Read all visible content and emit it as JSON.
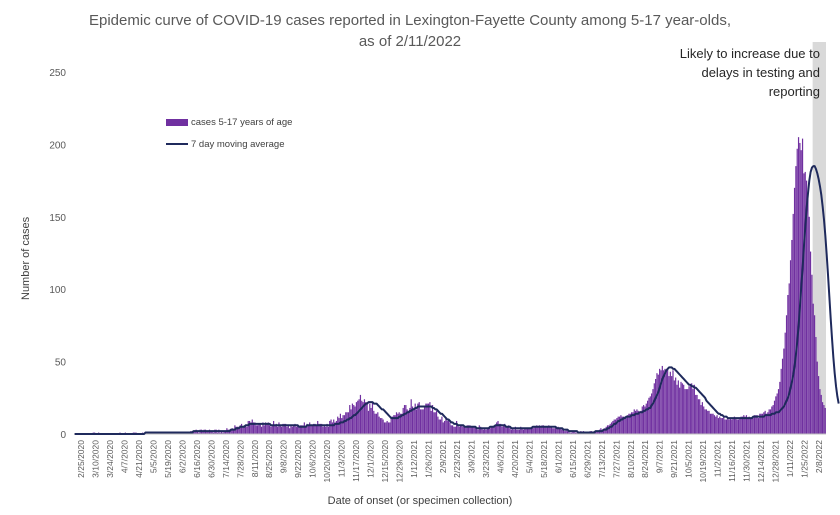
{
  "chart_data": {
    "type": "bar",
    "title": "Epidemic curve of COVID-19 cases reported in Lexington-Fayette County among 5-17 year-olds, as of 2/11/2022",
    "xlabel": "Date of onset (or specimen collection)",
    "ylabel": "Number of cases",
    "ylim": [
      0,
      250
    ],
    "yticks": [
      0,
      50,
      100,
      150,
      200,
      250
    ],
    "grid": false,
    "legend_position": "top-left",
    "annotation": "Likely to increase due to delays in testing and reporting",
    "x_range": [
      "2/25/2020",
      "2/11/2022"
    ],
    "tick_labels": [
      "2/25/2020",
      "3/10/2020",
      "3/24/2020",
      "4/7/2020",
      "4/21/2020",
      "5/5/2020",
      "5/19/2020",
      "6/2/2020",
      "6/16/2020",
      "6/30/2020",
      "7/14/2020",
      "7/28/2020",
      "8/11/2020",
      "8/25/2020",
      "9/8/2020",
      "9/22/2020",
      "10/6/2020",
      "10/20/2020",
      "11/3/2020",
      "11/17/2020",
      "12/1/2020",
      "12/15/2020",
      "12/29/2020",
      "1/12/2021",
      "1/26/2021",
      "2/9/2021",
      "2/23/2021",
      "3/9/2021",
      "3/23/2021",
      "4/6/2021",
      "4/20/2021",
      "5/4/2021",
      "5/18/2021",
      "6/1/2021",
      "6/15/2021",
      "6/29/2021",
      "7/13/2021",
      "7/27/2021",
      "8/10/2021",
      "8/24/2021",
      "9/7/2021",
      "9/21/2021",
      "10/5/2021",
      "10/19/2021",
      "11/2/2021",
      "11/16/2021",
      "11/30/2021",
      "12/14/2021",
      "12/28/2021",
      "1/11/2022",
      "1/25/2022",
      "2/8/2022"
    ],
    "series": [
      {
        "name": "cases 5-17 years of age",
        "kind": "bar",
        "color": "#7030a0",
        "values": [
          0,
          0,
          0,
          0,
          0,
          0,
          0,
          0,
          0,
          0,
          0,
          0,
          0,
          0,
          1,
          1,
          0,
          0,
          1,
          0,
          0,
          0,
          0,
          0,
          0,
          0,
          0,
          0,
          0,
          0,
          0,
          0,
          0,
          0,
          1,
          0,
          0,
          0,
          1,
          0,
          0,
          0,
          0,
          0,
          1,
          1,
          1,
          0,
          0,
          0,
          0,
          1,
          0,
          1,
          1,
          0,
          0,
          0,
          1,
          1,
          0,
          1,
          0,
          0,
          0,
          0,
          1,
          0,
          0,
          0,
          0,
          0,
          1,
          0,
          0,
          1,
          1,
          0,
          0,
          1,
          0,
          1,
          0,
          1,
          1,
          1,
          1,
          2,
          2,
          2,
          2,
          3,
          2,
          1,
          3,
          3,
          2,
          3,
          3,
          2,
          2,
          3,
          2,
          2,
          1,
          3,
          3,
          1,
          3,
          1,
          2,
          1,
          2,
          2,
          4,
          3,
          3,
          3,
          4,
          3,
          6,
          5,
          5,
          5,
          6,
          7,
          5,
          6,
          6,
          5,
          9,
          9,
          8,
          10,
          8,
          8,
          6,
          6,
          7,
          7,
          5,
          8,
          6,
          8,
          7,
          8,
          6,
          5,
          6,
          9,
          6,
          7,
          5,
          8,
          6,
          5,
          7,
          7,
          7,
          5,
          6,
          4,
          6,
          5,
          6,
          7,
          5,
          6,
          5,
          6,
          6,
          6,
          8,
          5,
          7,
          6,
          8,
          6,
          6,
          7,
          7,
          6,
          9,
          7,
          7,
          7,
          5,
          6,
          5,
          7,
          5,
          9,
          10,
          8,
          10,
          8,
          9,
          12,
          11,
          14,
          11,
          13,
          13,
          15,
          15,
          15,
          20,
          17,
          21,
          20,
          19,
          22,
          23,
          24,
          27,
          23,
          22,
          24,
          22,
          22,
          16,
          21,
          18,
          22,
          16,
          14,
          14,
          15,
          12,
          11,
          11,
          10,
          8,
          8,
          9,
          8,
          8,
          12,
          12,
          13,
          13,
          15,
          14,
          15,
          14,
          14,
          18,
          20,
          20,
          17,
          16,
          18,
          24,
          19,
          18,
          21,
          17,
          21,
          22,
          17,
          17,
          17,
          19,
          21,
          21,
          21,
          22,
          16,
          20,
          15,
          15,
          16,
          12,
          10,
          10,
          12,
          8,
          9,
          11,
          9,
          10,
          8,
          6,
          6,
          5,
          5,
          9,
          6,
          5,
          6,
          6,
          5,
          5,
          5,
          6,
          6,
          6,
          5,
          5,
          5,
          5,
          4,
          3,
          6,
          5,
          4,
          3,
          4,
          3,
          4,
          4,
          4,
          5,
          5,
          6,
          6,
          8,
          9,
          7,
          7,
          5,
          6,
          7,
          5,
          5,
          6,
          4,
          3,
          4,
          3,
          5,
          3,
          3,
          3,
          5,
          4,
          3,
          4,
          4,
          4,
          4,
          4,
          5,
          4,
          5,
          5,
          6,
          5,
          6,
          5,
          6,
          6,
          5,
          5,
          5,
          6,
          5,
          5,
          4,
          4,
          5,
          4,
          5,
          4,
          4,
          3,
          3,
          2,
          3,
          2,
          2,
          1,
          1,
          2,
          2,
          1,
          1,
          1,
          1,
          2,
          1,
          2,
          1,
          1,
          1,
          1,
          2,
          2,
          1,
          2,
          2,
          2,
          2,
          3,
          4,
          3,
          3,
          4,
          5,
          6,
          6,
          7,
          8,
          9,
          10,
          10,
          11,
          12,
          12,
          13,
          12,
          12,
          12,
          12,
          13,
          14,
          14,
          15,
          15,
          17,
          16,
          17,
          16,
          14,
          16,
          19,
          20,
          19,
          21,
          23,
          25,
          26,
          28,
          31,
          35,
          38,
          42,
          41,
          45,
          44,
          47,
          44,
          45,
          44,
          45,
          40,
          43,
          40,
          44,
          37,
          39,
          34,
          37,
          32,
          36,
          35,
          34,
          31,
          31,
          31,
          33,
          33,
          35,
          31,
          34,
          27,
          27,
          24,
          24,
          20,
          22,
          19,
          17,
          17,
          16,
          16,
          14,
          14,
          14,
          13,
          12,
          13,
          11,
          12,
          11,
          11,
          12,
          10,
          10,
          11,
          10,
          11,
          10,
          11,
          12,
          11,
          10,
          10,
          11,
          12,
          12,
          13,
          12,
          13,
          11,
          12,
          11,
          11,
          12,
          13,
          13,
          13,
          11,
          14,
          14,
          14,
          15,
          16,
          14,
          15,
          17,
          17,
          19,
          20,
          23,
          26,
          28,
          31,
          36,
          45,
          52,
          59,
          70,
          82,
          96,
          104,
          120,
          134,
          152,
          170,
          185,
          197,
          205,
          201,
          196,
          204,
          180,
          181,
          175,
          165,
          150,
          126,
          110,
          90,
          82,
          67,
          50,
          40,
          31,
          27,
          22,
          20,
          18
        ]
      },
      {
        "name": "7 day moving average",
        "kind": "line",
        "color": "#1f2a5c",
        "values": [
          0,
          0,
          0,
          0,
          0,
          0,
          0,
          0,
          0,
          0,
          0,
          0,
          0,
          0,
          0,
          0,
          0,
          0,
          0,
          0,
          0,
          0,
          0,
          0,
          0,
          0,
          0,
          0,
          0,
          0,
          0,
          0,
          0,
          0,
          0,
          0,
          0,
          0,
          0,
          0,
          0,
          0,
          0,
          0,
          0,
          0,
          0,
          0,
          0,
          0,
          0,
          0,
          0,
          1,
          1,
          1,
          1,
          1,
          1,
          1,
          1,
          1,
          1,
          1,
          1,
          1,
          1,
          1,
          1,
          1,
          1,
          1,
          1,
          1,
          1,
          1,
          1,
          1,
          1,
          1,
          1,
          1,
          1,
          1,
          1,
          1,
          1,
          1,
          1,
          2,
          2,
          2,
          2,
          2,
          2,
          2,
          2,
          2,
          2,
          2,
          2,
          2,
          2,
          2,
          2,
          2,
          2,
          2,
          2,
          2,
          2,
          2,
          2,
          2,
          2,
          2,
          2,
          3,
          3,
          3,
          3,
          4,
          4,
          4,
          5,
          5,
          5,
          5,
          6,
          6,
          6,
          7,
          7,
          7,
          7,
          7,
          7,
          7,
          7,
          7,
          7,
          7,
          7,
          7,
          7,
          7,
          7,
          6,
          6,
          6,
          6,
          6,
          6,
          6,
          6,
          6,
          6,
          6,
          6,
          6,
          6,
          6,
          6,
          6,
          6,
          6,
          6,
          6,
          5,
          5,
          5,
          5,
          5,
          5,
          6,
          6,
          6,
          6,
          6,
          6,
          6,
          6,
          6,
          6,
          6,
          6,
          6,
          6,
          6,
          6,
          6,
          6,
          6,
          6,
          6,
          7,
          7,
          7,
          7,
          8,
          8,
          8,
          9,
          9,
          10,
          10,
          11,
          11,
          12,
          13,
          13,
          14,
          15,
          16,
          17,
          18,
          19,
          20,
          21,
          21,
          22,
          22,
          22,
          22,
          21,
          21,
          21,
          20,
          19,
          18,
          17,
          17,
          16,
          15,
          14,
          13,
          12,
          11,
          11,
          11,
          11,
          11,
          11,
          12,
          12,
          13,
          13,
          14,
          14,
          15,
          15,
          16,
          16,
          17,
          17,
          18,
          18,
          19,
          19,
          19,
          19,
          19,
          19,
          19,
          19,
          19,
          19,
          19,
          18,
          18,
          17,
          17,
          16,
          15,
          14,
          14,
          13,
          12,
          11,
          10,
          10,
          9,
          8,
          8,
          7,
          7,
          7,
          6,
          6,
          6,
          6,
          6,
          5,
          5,
          5,
          5,
          5,
          5,
          5,
          5,
          5,
          4,
          4,
          4,
          4,
          4,
          4,
          4,
          4,
          4,
          4,
          5,
          5,
          5,
          5,
          6,
          6,
          6,
          6,
          6,
          6,
          6,
          6,
          5,
          5,
          5,
          5,
          4,
          4,
          4,
          4,
          4,
          4,
          4,
          4,
          4,
          4,
          4,
          4,
          4,
          4,
          4,
          4,
          5,
          5,
          5,
          5,
          5,
          5,
          5,
          5,
          5,
          5,
          5,
          5,
          5,
          5,
          5,
          5,
          5,
          5,
          4,
          4,
          4,
          4,
          4,
          3,
          3,
          3,
          3,
          2,
          2,
          2,
          2,
          2,
          2,
          2,
          1,
          1,
          1,
          1,
          1,
          1,
          1,
          1,
          1,
          1,
          1,
          1,
          1,
          2,
          2,
          2,
          2,
          2,
          2,
          3,
          3,
          3,
          4,
          4,
          5,
          5,
          6,
          7,
          7,
          8,
          9,
          9,
          10,
          10,
          11,
          11,
          12,
          12,
          12,
          12,
          13,
          13,
          13,
          14,
          14,
          14,
          15,
          15,
          15,
          16,
          16,
          17,
          17,
          18,
          18,
          20,
          21,
          23,
          25,
          27,
          29,
          32,
          35,
          38,
          40,
          42,
          44,
          45,
          46,
          46,
          46,
          45,
          45,
          44,
          43,
          42,
          41,
          40,
          39,
          38,
          37,
          36,
          35,
          34,
          34,
          33,
          33,
          32,
          32,
          31,
          30,
          29,
          28,
          27,
          26,
          25,
          23,
          22,
          21,
          20,
          19,
          18,
          17,
          16,
          15,
          14,
          14,
          13,
          13,
          12,
          12,
          12,
          11,
          11,
          11,
          11,
          11,
          11,
          11,
          11,
          11,
          11,
          11,
          11,
          11,
          11,
          11,
          11,
          11,
          11,
          11,
          12,
          12,
          12,
          12,
          12,
          12,
          12,
          12,
          12,
          13,
          13,
          13,
          13,
          13,
          14,
          14,
          14,
          15,
          15,
          15,
          16,
          17,
          18,
          19,
          21,
          23,
          25,
          28,
          32,
          36,
          41,
          47,
          55,
          64,
          75,
          88,
          102,
          115,
          130,
          143,
          156,
          166,
          175,
          181,
          184,
          185,
          185,
          183,
          180,
          176,
          171,
          165,
          157,
          148,
          137,
          124,
          110,
          95,
          80,
          66,
          53,
          42,
          33,
          26,
          21
        ]
      }
    ]
  },
  "legend": {
    "bar_label": "cases 5-17 years of age",
    "line_label": "7 day moving average"
  }
}
